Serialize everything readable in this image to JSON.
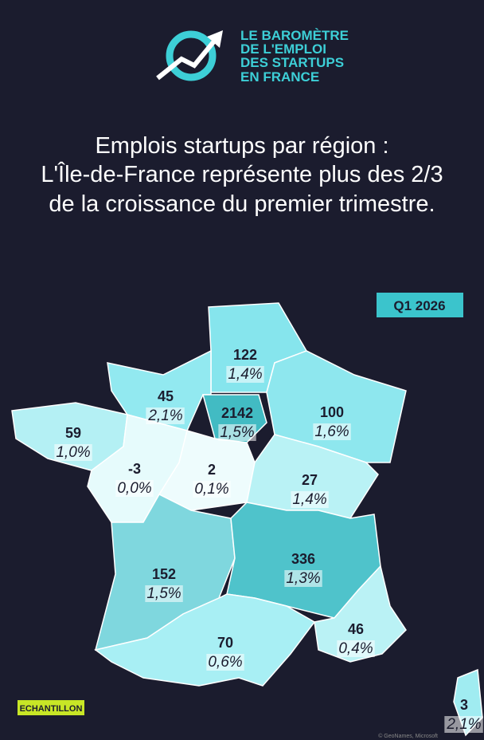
{
  "logo": {
    "lines": [
      "LE BAROMÈTRE",
      "DE L'EMPLOI",
      "DES STARTUPS",
      "EN FRANCE"
    ]
  },
  "title": {
    "lines": [
      "Emplois startups par région :",
      "L'Île-de-France représente plus des 2/3",
      "de la croissance du premier trimestre."
    ]
  },
  "badge": "Q1 2026",
  "regions": [
    {
      "value": 122,
      "pct": "1,4%",
      "color": "#86e5ed"
    },
    {
      "value": 45,
      "pct": "2,1%",
      "color": "#92e9f0"
    },
    {
      "value": 2142,
      "pct": "1,5%",
      "color": "#42bbc3"
    },
    {
      "value": 100,
      "pct": "1,6%",
      "color": "#8ee7ee"
    },
    {
      "value": 59,
      "pct": "1,0%",
      "color": "#b4f0f4"
    },
    {
      "value": -3,
      "pct": "0,0%",
      "color": "#e6fbfc"
    },
    {
      "value": 2,
      "pct": "0,1%",
      "color": "#eefcfd"
    },
    {
      "value": 27,
      "pct": "1,4%",
      "color": "#b9f2f5"
    },
    {
      "value": 152,
      "pct": "1,5%",
      "color": "#7fd7de"
    },
    {
      "value": 336,
      "pct": "1,3%",
      "color": "#4fc3cb"
    },
    {
      "value": 70,
      "pct": "0,6%",
      "color": "#a8eff4"
    },
    {
      "value": 46,
      "pct": "0,4%",
      "color": "#baf2f5"
    },
    {
      "value": 3,
      "pct": "2,1%",
      "color": "#a0ecf1"
    }
  ],
  "watermark": "ECHANTILLON",
  "credit": "© GeoNames, Microsoft"
}
